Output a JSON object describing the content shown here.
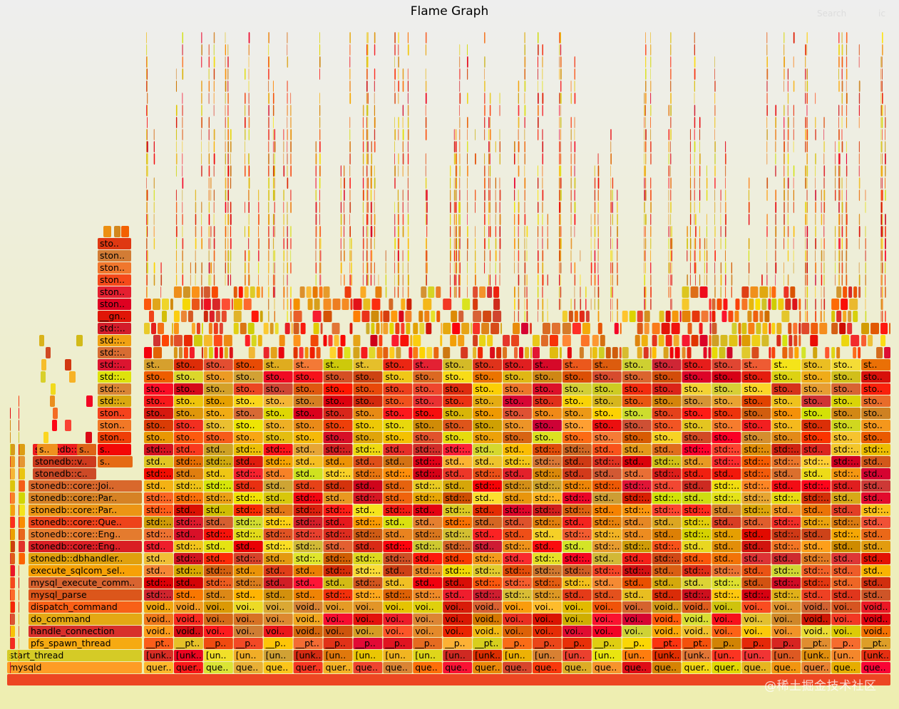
{
  "header": {
    "title": "Flame Graph",
    "search_label": "Search",
    "ic_label": "ic"
  },
  "watermark": "@稀土掘金技术社区",
  "chart_data": {
    "type": "flamegraph",
    "title": "Flame Graph",
    "root_frame": "",
    "stack": [
      "mysqld",
      "start_thread",
      "pfs_spawn_thread",
      "handle_connection",
      "do_command",
      "dispatch_command",
      "mysql_parse",
      "mysql_execute_comm..",
      "execute_sqlcom_sel..",
      "stonedb::dbhandler..",
      "stonedb::core::Eng..",
      "stonedb::core::Eng..",
      "stonedb::core::Que..",
      "stonedb::core::Par..",
      "stonedb::core::Par..",
      "stonedb::core::Joi..",
      "stonedb::c..",
      "stonedb::v..",
      "stonedb::v.."
    ],
    "left_tower": [
      "sto..",
      "ston..",
      "ston..",
      "ston..",
      "ston..",
      "ston..",
      "__gn..",
      "std::..",
      "std::..",
      "std::..",
      "std::..",
      "std::..",
      "std::..",
      "std::..",
      "ston..",
      "ston..",
      "ston..",
      "s..",
      "s.."
    ],
    "thread_columns": 25,
    "column_labels": {
      "level1": [
        "quer..",
        "quer..",
        "que..",
        "que..",
        "que..",
        "quer..",
        "quer..",
        "que..",
        "que..",
        "que..",
        "que..",
        "quer..",
        "que..",
        "que..",
        "que..",
        "que..",
        "que..",
        "que..",
        "quer..",
        "quer..",
        "que..",
        "que..",
        "quer..",
        "que..",
        "que.."
      ],
      "level2": [
        "[unk..",
        "[unk..",
        "[un..",
        "[un..",
        "[un..",
        "[unk..",
        "[un..",
        "[un..",
        "[un..",
        "[un..",
        "[un..",
        "[unk..",
        "[un..",
        "[un..",
        "[un..",
        "[un..",
        "[un..",
        "[unk..",
        "[unk..",
        "[un..",
        "[un..",
        "[un..",
        "[unk..",
        "[un.."
      ],
      "level3": [
        "__pt..",
        "__pt..",
        "__p..",
        "__p..",
        "__p..",
        "__pt..",
        "__p..",
        "__p..",
        "__p..",
        "__p..",
        "__p..",
        "__pt..",
        "__p..",
        "__p..",
        "__p..",
        "__p..",
        "__p..",
        "__pt..",
        "__pt..",
        "__p..",
        "__p..",
        "__p..",
        "__pt..",
        "__p.."
      ],
      "level4": [
        "void..",
        "void..",
        "voi..",
        "voi..",
        "voi..",
        "void..",
        "voi..",
        "voi..",
        "voi..",
        "voi..",
        "voi..",
        "void..",
        "voi..",
        "voi..",
        "voi..",
        "voi..",
        "voi..",
        "void..",
        "void..",
        "voi..",
        "voi..",
        "voi..",
        "void..",
        "voi.."
      ],
      "std_full": "std::..",
      "std_short": "std..",
      "sto": "sto..",
      "st": "st.."
    }
  }
}
